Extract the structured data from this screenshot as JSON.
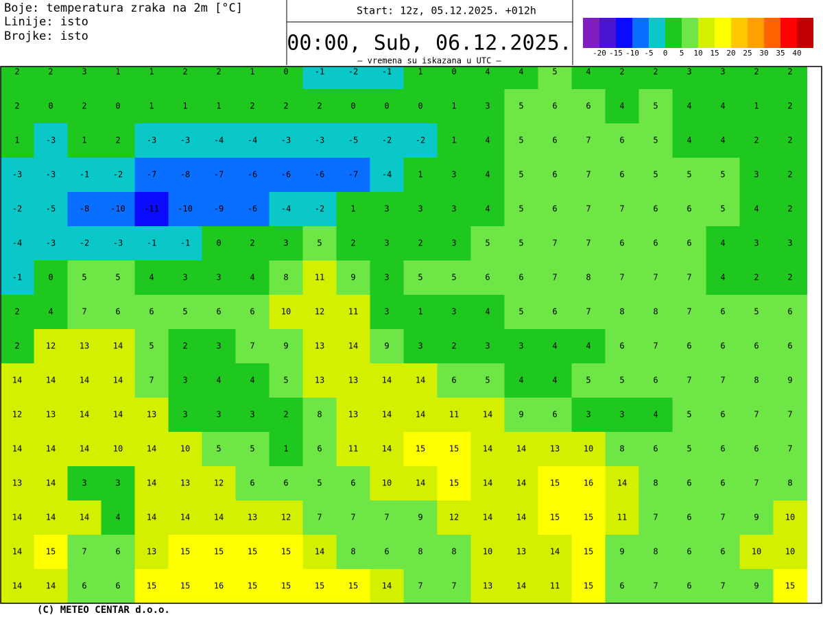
{
  "header": {
    "colors": "Boje: temperatura zraka na 2m [°C]",
    "lines": "Linije: isto",
    "numbers": "Brojke: isto",
    "start": "Start: 12z, 05.12.2025.   +012h",
    "valid": "00:00, Sub, 06.12.2025.",
    "note": "– vremena su iskazana u UTC –"
  },
  "legend": {
    "labels": [
      -20,
      -15,
      -10,
      -5,
      0,
      5,
      10,
      15,
      20,
      25,
      30,
      35,
      40
    ],
    "colors": [
      "#7f1fbf",
      "#4b14d2",
      "#0a0aff",
      "#0a6eff",
      "#0ac8c8",
      "#1ec81e",
      "#6ee646",
      "#d2f000",
      "#ffff00",
      "#ffc800",
      "#ffa000",
      "#ff6400",
      "#ff0000",
      "#c00000"
    ]
  },
  "grid": {
    "rows": [
      [
        2,
        2,
        3,
        1,
        1,
        2,
        2,
        1,
        0,
        -1,
        -2,
        -1,
        1,
        0,
        4,
        4,
        5,
        4,
        2,
        2,
        3,
        3,
        2,
        2
      ],
      [
        2,
        0,
        2,
        0,
        1,
        1,
        1,
        2,
        2,
        2,
        0,
        0,
        0,
        1,
        3,
        5,
        6,
        6,
        4,
        5,
        4,
        4,
        1,
        2
      ],
      [
        1,
        -3,
        1,
        2,
        -3,
        -3,
        -4,
        -4,
        -3,
        -3,
        -5,
        -2,
        -2,
        1,
        4,
        5,
        6,
        7,
        6,
        5,
        4,
        4,
        2,
        2
      ],
      [
        -3,
        -3,
        -1,
        -2,
        -7,
        -8,
        -7,
        -6,
        -6,
        -6,
        -7,
        -4,
        1,
        3,
        4,
        5,
        6,
        7,
        6,
        5,
        5,
        5,
        3,
        2
      ],
      [
        -2,
        -5,
        -8,
        -10,
        -11,
        -10,
        -9,
        -6,
        -4,
        -2,
        1,
        3,
        3,
        3,
        4,
        5,
        6,
        7,
        7,
        6,
        6,
        5,
        4,
        2
      ],
      [
        -4,
        -3,
        -2,
        -3,
        -1,
        -1,
        0,
        2,
        3,
        5,
        2,
        3,
        2,
        3,
        5,
        5,
        7,
        7,
        6,
        6,
        6,
        4,
        3,
        3
      ],
      [
        -1,
        0,
        5,
        5,
        4,
        3,
        3,
        4,
        8,
        11,
        9,
        3,
        5,
        5,
        6,
        6,
        7,
        8,
        7,
        7,
        7,
        4,
        2,
        2
      ],
      [
        2,
        4,
        7,
        6,
        6,
        5,
        6,
        6,
        10,
        12,
        11,
        3,
        1,
        3,
        4,
        5,
        6,
        7,
        8,
        8,
        7,
        6,
        5,
        6
      ],
      [
        2,
        12,
        13,
        14,
        5,
        2,
        3,
        7,
        9,
        13,
        14,
        9,
        3,
        2,
        3,
        3,
        4,
        4,
        6,
        7,
        6,
        6,
        6,
        6
      ],
      [
        14,
        14,
        14,
        14,
        7,
        3,
        4,
        4,
        5,
        13,
        13,
        14,
        14,
        6,
        5,
        4,
        4,
        5,
        5,
        6,
        7,
        7,
        8,
        9
      ],
      [
        12,
        13,
        14,
        14,
        13,
        3,
        3,
        3,
        2,
        8,
        13,
        14,
        14,
        11,
        14,
        9,
        6,
        3,
        3,
        4,
        5,
        6,
        7,
        7
      ],
      [
        14,
        14,
        14,
        10,
        14,
        10,
        5,
        5,
        1,
        6,
        11,
        14,
        15,
        15,
        14,
        14,
        13,
        10,
        8,
        6,
        5,
        6,
        6,
        7
      ],
      [
        13,
        14,
        3,
        3,
        14,
        13,
        12,
        6,
        6,
        5,
        6,
        10,
        14,
        15,
        14,
        14,
        15,
        16,
        14,
        8,
        6,
        6,
        7,
        8
      ],
      [
        14,
        14,
        14,
        4,
        14,
        14,
        14,
        13,
        12,
        7,
        7,
        7,
        9,
        12,
        14,
        14,
        15,
        15,
        11,
        7,
        6,
        7,
        9,
        10
      ],
      [
        14,
        15,
        7,
        6,
        13,
        15,
        15,
        15,
        15,
        14,
        8,
        6,
        8,
        8,
        10,
        13,
        14,
        15,
        9,
        8,
        6,
        6,
        10,
        10
      ],
      [
        14,
        14,
        6,
        6,
        15,
        15,
        16,
        15,
        15,
        15,
        15,
        14,
        7,
        7,
        13,
        14,
        11,
        15,
        6,
        7,
        6,
        7,
        9,
        15
      ]
    ]
  },
  "footer": "(C) METEO CENTAR d.o.o."
}
